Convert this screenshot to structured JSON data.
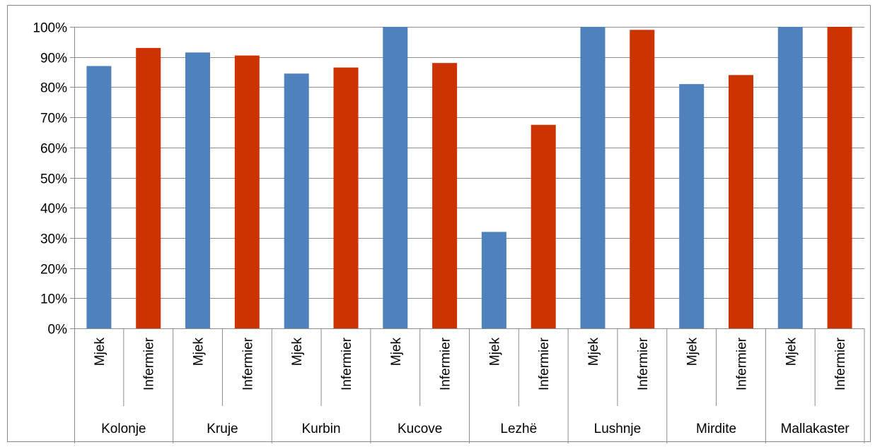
{
  "chart_data": {
    "type": "bar",
    "title": "",
    "xlabel": "",
    "ylabel": "",
    "ylim": [
      0,
      1
    ],
    "y_tick_values": [
      0,
      0.1,
      0.2,
      0.3,
      0.4,
      0.5,
      0.6,
      0.7,
      0.8,
      0.9,
      1.0
    ],
    "y_tick_labels": [
      "0%",
      "10%",
      "20%",
      "30%",
      "40%",
      "50%",
      "60%",
      "70%",
      "80%",
      "90%",
      "100%"
    ],
    "grid": true,
    "legend": "none",
    "groups": [
      {
        "name": "Kolonje",
        "bars": [
          {
            "label": "Mjek",
            "value": 0.87
          },
          {
            "label": "Infermier",
            "value": 0.93
          }
        ]
      },
      {
        "name": "Kruje",
        "bars": [
          {
            "label": "Mjek",
            "value": 0.915
          },
          {
            "label": "Infermier",
            "value": 0.905
          }
        ]
      },
      {
        "name": "Kurbin",
        "bars": [
          {
            "label": "Mjek",
            "value": 0.845
          },
          {
            "label": "Infermier",
            "value": 0.865
          }
        ]
      },
      {
        "name": "Kucove",
        "bars": [
          {
            "label": "Mjek",
            "value": 1.0
          },
          {
            "label": "Infermier",
            "value": 0.88
          }
        ]
      },
      {
        "name": "Lezhë",
        "bars": [
          {
            "label": "Mjek",
            "value": 0.32
          },
          {
            "label": "Infermier",
            "value": 0.675
          }
        ]
      },
      {
        "name": "Lushnje",
        "bars": [
          {
            "label": "Mjek",
            "value": 1.0
          },
          {
            "label": "Infermier",
            "value": 0.99
          }
        ]
      },
      {
        "name": "Mirdite",
        "bars": [
          {
            "label": "Mjek",
            "value": 0.81
          },
          {
            "label": "Infermier",
            "value": 0.84
          }
        ]
      },
      {
        "name": "Mallakaster",
        "bars": [
          {
            "label": "Mjek",
            "value": 1.0
          },
          {
            "label": "Infermier",
            "value": 1.0
          }
        ]
      }
    ],
    "colors": {
      "Mjek": "#4f81bd",
      "Infermier": "#c0504d",
      "Infermier_shown": "#cc3300"
    }
  }
}
